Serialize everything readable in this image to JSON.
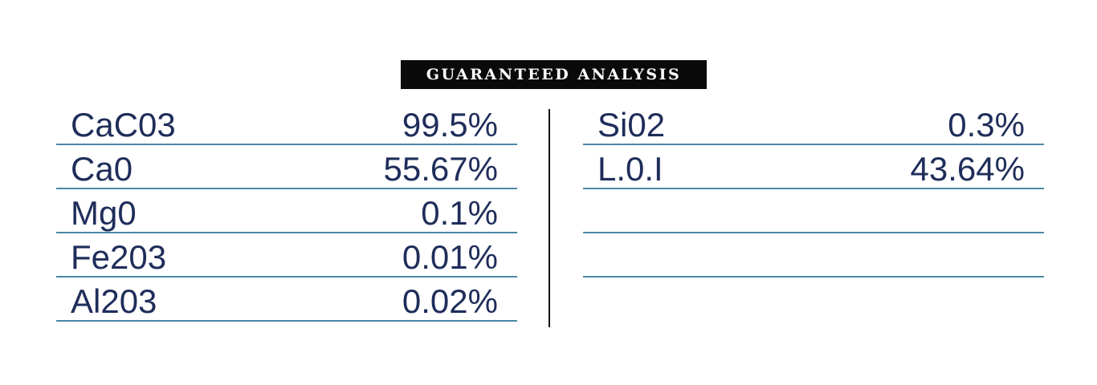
{
  "title": "GUARANTEED ANALYSIS",
  "left_rows": [
    {
      "name": "CaC03",
      "value": "99.5%"
    },
    {
      "name": "Ca0",
      "value": "55.67%"
    },
    {
      "name": "Mg0",
      "value": "0.1%"
    },
    {
      "name": "Fe203",
      "value": "0.01%"
    },
    {
      "name": "Al203",
      "value": "0.02%"
    }
  ],
  "right_rows": [
    {
      "name": "Si02",
      "value": "0.3%"
    },
    {
      "name": "L.0.I",
      "value": "43.64%"
    },
    {
      "name": "",
      "value": ""
    },
    {
      "name": "",
      "value": ""
    }
  ],
  "colors": {
    "title_background": "#0a0a0a",
    "title_text": "#ffffff",
    "row_text": "#1f2d5a",
    "rule_line": "#4a87a6",
    "divider": "#111111"
  }
}
